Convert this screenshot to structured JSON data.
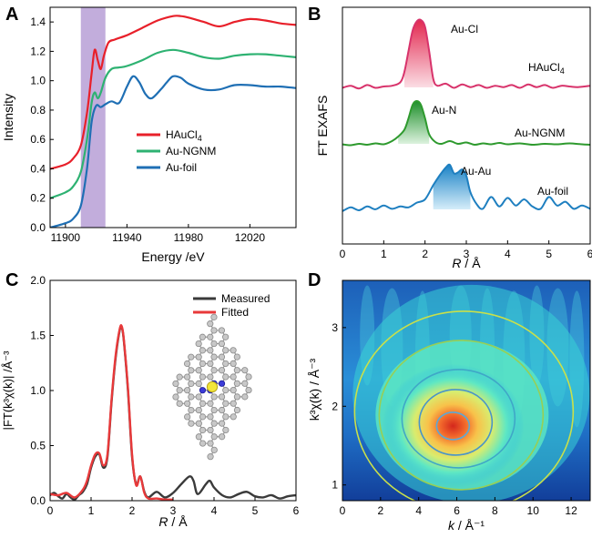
{
  "chart_data": [
    {
      "panel": "A",
      "type": "line",
      "xlabel": "Energy /eV",
      "ylabel": "Intensity",
      "xlim": [
        11890,
        12050
      ],
      "ylim": [
        0.0,
        1.5
      ],
      "xticks": [
        11900,
        11940,
        11980,
        12020
      ],
      "yticks": [
        0.0,
        0.2,
        0.4,
        0.6,
        0.8,
        1.0,
        1.2,
        1.4
      ],
      "shaded_region": {
        "x": [
          11910,
          11926
        ],
        "color": "#b79fd6"
      },
      "legend": {
        "placement": "center-right"
      },
      "series": [
        {
          "name": "HAuCl4",
          "legend_main": "HAuCl",
          "legend_sub": "4",
          "color": "#e8202a",
          "x": [
            11890,
            11900,
            11905,
            11910,
            11914,
            11917,
            11919,
            11921,
            11923,
            11925,
            11928,
            11932,
            11940,
            11950,
            11960,
            11970,
            11975,
            11980,
            11990,
            12000,
            12010,
            12020,
            12030,
            12040,
            12050
          ],
          "y": [
            0.4,
            0.43,
            0.47,
            0.56,
            0.78,
            1.05,
            1.21,
            1.14,
            1.08,
            1.17,
            1.26,
            1.28,
            1.31,
            1.36,
            1.41,
            1.44,
            1.44,
            1.43,
            1.4,
            1.37,
            1.4,
            1.42,
            1.41,
            1.39,
            1.38
          ]
        },
        {
          "name": "Au-NGNM",
          "legend_main": "Au-NGNM",
          "legend_sub": "",
          "color": "#2eb272",
          "x": [
            11890,
            11900,
            11905,
            11910,
            11914,
            11917,
            11919,
            11921,
            11923,
            11926,
            11930,
            11935,
            11940,
            11950,
            11960,
            11970,
            11980,
            11990,
            12000,
            12010,
            12020,
            12030,
            12040,
            12050
          ],
          "y": [
            0.2,
            0.24,
            0.28,
            0.38,
            0.6,
            0.85,
            0.92,
            0.88,
            0.92,
            1.02,
            1.08,
            1.09,
            1.1,
            1.14,
            1.19,
            1.21,
            1.19,
            1.16,
            1.15,
            1.17,
            1.18,
            1.18,
            1.17,
            1.16
          ],
          "y_note": "curve"
        },
        {
          "name": "Au-foil",
          "legend_main": "Au-foil",
          "legend_sub": "",
          "color": "#1f6fb4",
          "x": [
            11890,
            11900,
            11905,
            11910,
            11914,
            11917,
            11920,
            11923,
            11926,
            11930,
            11935,
            11940,
            11944,
            11948,
            11952,
            11956,
            11962,
            11966,
            11970,
            11975,
            11980,
            11990,
            12000,
            12010,
            12020,
            12030,
            12040,
            12050
          ],
          "y": [
            0.0,
            0.03,
            0.06,
            0.15,
            0.4,
            0.72,
            0.83,
            0.82,
            0.84,
            0.86,
            0.85,
            0.96,
            1.03,
            0.99,
            0.91,
            0.88,
            0.94,
            0.99,
            1.03,
            1.02,
            0.98,
            0.94,
            0.94,
            0.97,
            0.97,
            0.96,
            0.96,
            0.95
          ]
        }
      ]
    },
    {
      "panel": "B",
      "type": "line",
      "xlabel_main": "R",
      "xlabel_unit": " / Å",
      "ylabel": "FT EXAFS",
      "xlim": [
        0,
        6
      ],
      "xticks": [
        0,
        1,
        2,
        3,
        4,
        5,
        6
      ],
      "series": [
        {
          "name": "HAuCl4",
          "label_main": "HAuCl",
          "label_sub": "4",
          "peak_label": "Au-Cl",
          "color": "#d8336b",
          "fill": "#e23a63",
          "x": [
            0,
            0.2,
            0.4,
            0.6,
            0.8,
            1.0,
            1.2,
            1.4,
            1.5,
            1.6,
            1.7,
            1.8,
            1.9,
            2.0,
            2.1,
            2.2,
            2.3,
            2.5,
            2.7,
            2.9,
            3.1,
            3.3,
            3.5,
            3.7,
            3.9,
            4.1,
            4.3,
            4.5,
            4.7,
            4.9,
            5.1,
            5.3,
            5.5,
            5.7,
            6.0
          ],
          "y": [
            0.02,
            0.05,
            0.01,
            0.06,
            0.02,
            0.04,
            0.05,
            0.1,
            0.25,
            0.55,
            0.85,
            0.98,
            1.0,
            0.9,
            0.55,
            0.15,
            0.05,
            0.08,
            0.02,
            0.07,
            0.03,
            0.06,
            0.02,
            0.05,
            0.03,
            0.06,
            0.02,
            0.07,
            0.03,
            0.06,
            0.02,
            0.05,
            0.04,
            0.03,
            0.05
          ]
        },
        {
          "name": "Au-NGNM",
          "label_main": "Au-NGNM",
          "label_sub": "",
          "peak_label": "Au-N",
          "color": "#2e9a2e",
          "fill": "#32a73e",
          "x": [
            0,
            0.2,
            0.4,
            0.6,
            0.8,
            1.0,
            1.2,
            1.35,
            1.5,
            1.6,
            1.7,
            1.8,
            1.9,
            2.0,
            2.1,
            2.25,
            2.4,
            2.6,
            2.8,
            3.0,
            3.2,
            3.4,
            3.6,
            3.8,
            4.0,
            4.3,
            4.6,
            4.9,
            5.2,
            5.5,
            5.8,
            6.0
          ],
          "y": [
            0.03,
            0.01,
            0.04,
            0.02,
            0.05,
            0.03,
            0.1,
            0.2,
            0.35,
            0.6,
            0.9,
            0.98,
            0.9,
            0.6,
            0.25,
            0.08,
            0.04,
            0.1,
            0.04,
            0.07,
            0.02,
            0.05,
            0.03,
            0.06,
            0.03,
            0.05,
            0.02,
            0.04,
            0.03,
            0.05,
            0.03,
            0.02
          ]
        },
        {
          "name": "Au-foil",
          "label_main": "Au-foil",
          "label_sub": "",
          "peak_label": "Au-Au",
          "color": "#1e7fc0",
          "fill": "#2aa2e0",
          "x": [
            0,
            0.2,
            0.4,
            0.6,
            0.8,
            1.0,
            1.2,
            1.4,
            1.6,
            1.8,
            2.0,
            2.2,
            2.35,
            2.5,
            2.6,
            2.7,
            2.8,
            2.9,
            3.0,
            3.1,
            3.25,
            3.4,
            3.6,
            3.8,
            4.0,
            4.2,
            4.4,
            4.6,
            4.8,
            5.0,
            5.2,
            5.4,
            5.6,
            5.8,
            6.0
          ],
          "y": [
            0.0,
            0.08,
            0.02,
            0.1,
            0.04,
            0.12,
            0.05,
            0.1,
            0.08,
            0.18,
            0.25,
            0.55,
            0.75,
            0.92,
            0.98,
            0.8,
            0.82,
            0.88,
            0.75,
            0.4,
            0.15,
            0.05,
            0.3,
            0.1,
            0.28,
            0.12,
            0.25,
            0.1,
            0.05,
            0.3,
            0.12,
            0.2,
            0.05,
            0.12,
            0.05
          ]
        }
      ]
    },
    {
      "panel": "C",
      "type": "line",
      "xlabel_main": "R",
      "xlabel_unit": " / Å",
      "ylabel": "|FT(k³χ(k)| /Å⁻³",
      "xlim": [
        0,
        6
      ],
      "ylim": [
        0.0,
        2.0
      ],
      "xticks": [
        0,
        1,
        2,
        3,
        4,
        5,
        6
      ],
      "yticks": [
        0.0,
        0.5,
        1.0,
        1.5,
        2.0
      ],
      "legend": {
        "placement": "top-right"
      },
      "series": [
        {
          "name": "Measured",
          "color": "#3a3a3a",
          "x": [
            0,
            0.1,
            0.2,
            0.3,
            0.4,
            0.5,
            0.6,
            0.7,
            0.8,
            0.9,
            1.0,
            1.1,
            1.2,
            1.3,
            1.4,
            1.5,
            1.6,
            1.7,
            1.75,
            1.8,
            1.9,
            2.0,
            2.1,
            2.2,
            2.3,
            2.4,
            2.6,
            2.8,
            3.0,
            3.2,
            3.4,
            3.5,
            3.6,
            3.8,
            3.9,
            4.0,
            4.2,
            4.4,
            4.6,
            4.8,
            5.0,
            5.2,
            5.4,
            5.6,
            5.8,
            6.0
          ],
          "y": [
            0.05,
            0.07,
            0.04,
            0.02,
            0.06,
            0.03,
            0.01,
            0.05,
            0.08,
            0.15,
            0.3,
            0.4,
            0.42,
            0.3,
            0.4,
            0.9,
            1.3,
            1.55,
            1.57,
            1.45,
            1.0,
            0.4,
            0.15,
            0.22,
            0.08,
            0.03,
            0.08,
            0.03,
            0.07,
            0.15,
            0.22,
            0.18,
            0.06,
            0.15,
            0.18,
            0.12,
            0.05,
            0.03,
            0.06,
            0.08,
            0.04,
            0.03,
            0.05,
            0.02,
            0.04,
            0.05
          ]
        },
        {
          "name": "Fitted",
          "color": "#e8393a",
          "x": [
            0,
            0.2,
            0.4,
            0.6,
            0.8,
            0.9,
            1.0,
            1.1,
            1.2,
            1.3,
            1.4,
            1.5,
            1.6,
            1.7,
            1.75,
            1.8,
            1.9,
            2.0,
            2.1,
            2.2,
            2.3,
            2.4,
            2.6,
            2.8,
            3.0
          ],
          "y": [
            0.06,
            0.05,
            0.07,
            0.03,
            0.1,
            0.18,
            0.32,
            0.42,
            0.43,
            0.32,
            0.42,
            0.92,
            1.32,
            1.56,
            1.58,
            1.46,
            1.02,
            0.42,
            0.14,
            0.22,
            0.07,
            0.02,
            0.02,
            0.01,
            0.01
          ]
        }
      ],
      "inset": "graphene lattice with single Au atom coordinated by N atoms"
    },
    {
      "panel": "D",
      "type": "heatmap",
      "xlabel_main": "k",
      "xlabel_unit": " / Å⁻¹",
      "ylabel": "k³χ(k) / Å⁻³",
      "xlim": [
        0,
        13
      ],
      "ylim": [
        0.8,
        3.6
      ],
      "xticks": [
        0,
        2,
        4,
        6,
        8,
        10,
        12
      ],
      "yticks": [
        1,
        2,
        3
      ],
      "peak": {
        "k": 5.8,
        "r": 1.75
      }
    }
  ]
}
